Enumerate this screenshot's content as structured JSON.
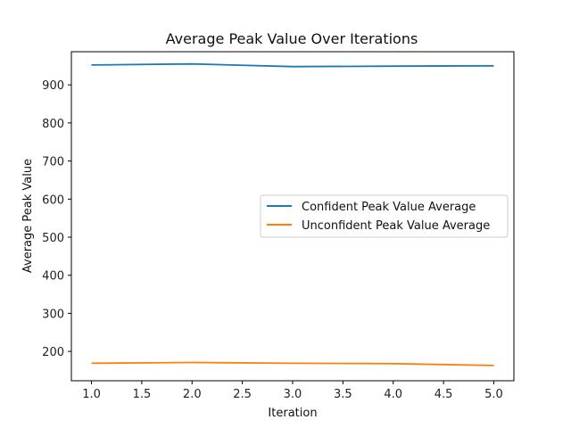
{
  "chart_data": {
    "type": "line",
    "title": "Average Peak Value Over Iterations",
    "xlabel": "Iteration",
    "ylabel": "Average Peak Value",
    "x": [
      1.0,
      2.0,
      3.0,
      4.0,
      5.0
    ],
    "xlim": [
      0.8,
      5.2
    ],
    "ylim": [
      123,
      987
    ],
    "xticks": [
      1.0,
      1.5,
      2.0,
      2.5,
      3.0,
      3.5,
      4.0,
      4.5,
      5.0
    ],
    "xtick_labels": [
      "1.0",
      "1.5",
      "2.0",
      "2.5",
      "3.0",
      "3.5",
      "4.0",
      "4.5",
      "5.0"
    ],
    "yticks": [
      200,
      300,
      400,
      500,
      600,
      700,
      800,
      900
    ],
    "ytick_labels": [
      "200",
      "300",
      "400",
      "500",
      "600",
      "700",
      "800",
      "900"
    ],
    "grid": false,
    "legend_position": "center-right",
    "series": [
      {
        "name": "Confident Peak Value Average",
        "color": "#1f77b4",
        "values": [
          952,
          955,
          948,
          949,
          950
        ]
      },
      {
        "name": "Unconfident Peak Value Average",
        "color": "#ff7f0e",
        "values": [
          169,
          171,
          169,
          168,
          163
        ]
      }
    ]
  }
}
